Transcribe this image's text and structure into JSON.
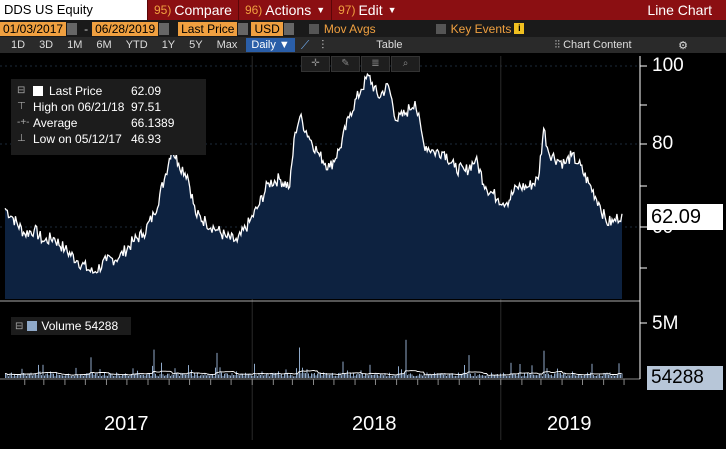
{
  "toolbar": {
    "ticker": "DDS US Equity",
    "compare_num": "95)",
    "compare": "Compare",
    "actions_num": "96)",
    "actions": "Actions",
    "edit_num": "97)",
    "edit": "Edit",
    "chart_title": "Line Chart"
  },
  "controls": {
    "start_date": "01/03/2017",
    "end_date": "06/28/2019",
    "field": "Last Price",
    "currency": "USD",
    "mov_avgs": "Mov Avgs",
    "key_events": "Key Events"
  },
  "periods": [
    "1D",
    "3D",
    "1M",
    "6M",
    "YTD",
    "1Y",
    "5Y",
    "Max"
  ],
  "frequency": "Daily",
  "table_label": "Table",
  "chart_content_label": "Chart Content",
  "legend": {
    "last_price_label": "Last Price",
    "last_price": "62.09",
    "high_label": "High on 06/21/18",
    "high": "97.51",
    "average_label": "Average",
    "average": "66.1389",
    "low_label": "Low on 05/12/17",
    "low": "46.93"
  },
  "volume_legend": {
    "label": "Volume",
    "value": "54288"
  },
  "price_label": "62.09",
  "volume_label": "54288",
  "chart_data": {
    "type": "area",
    "x_labels": [
      "2017",
      "2018",
      "2019"
    ],
    "y_ticks": [
      "100",
      "80",
      "60"
    ],
    "volume_ticks": [
      "5M"
    ],
    "colors": {
      "area": "#0d2240",
      "line": "#ffffff",
      "volume": "#8fa9c9"
    },
    "price": [
      [
        "2017-01-03",
        63.5
      ],
      [
        "2017-01-15",
        61
      ],
      [
        "2017-02-01",
        57
      ],
      [
        "2017-02-15",
        58
      ],
      [
        "2017-03-01",
        55
      ],
      [
        "2017-03-15",
        56
      ],
      [
        "2017-04-01",
        53
      ],
      [
        "2017-04-20",
        50
      ],
      [
        "2017-05-12",
        46.93
      ],
      [
        "2017-06-01",
        50
      ],
      [
        "2017-06-20",
        51
      ],
      [
        "2017-07-10",
        55
      ],
      [
        "2017-07-25",
        57
      ],
      [
        "2017-08-10",
        62
      ],
      [
        "2017-08-25",
        71
      ],
      [
        "2017-09-05",
        79
      ],
      [
        "2017-09-15",
        75
      ],
      [
        "2017-09-28",
        72
      ],
      [
        "2017-10-10",
        62
      ],
      [
        "2017-10-25",
        60
      ],
      [
        "2017-11-10",
        58
      ],
      [
        "2017-11-25",
        56
      ],
      [
        "2017-12-10",
        55
      ],
      [
        "2017-12-28",
        60
      ],
      [
        "2018-01-10",
        64
      ],
      [
        "2018-01-25",
        70
      ],
      [
        "2018-02-10",
        71
      ],
      [
        "2018-02-25",
        69
      ],
      [
        "2018-03-05",
        83
      ],
      [
        "2018-03-12",
        87
      ],
      [
        "2018-03-25",
        82
      ],
      [
        "2018-04-10",
        77
      ],
      [
        "2018-04-25",
        74
      ],
      [
        "2018-05-10",
        79
      ],
      [
        "2018-05-25",
        88
      ],
      [
        "2018-06-10",
        94
      ],
      [
        "2018-06-21",
        97.51
      ],
      [
        "2018-07-05",
        92
      ],
      [
        "2018-07-20",
        95
      ],
      [
        "2018-08-01",
        86
      ],
      [
        "2018-08-15",
        88
      ],
      [
        "2018-08-28",
        91
      ],
      [
        "2018-09-10",
        80
      ],
      [
        "2018-09-25",
        78
      ],
      [
        "2018-10-10",
        78
      ],
      [
        "2018-10-25",
        74
      ],
      [
        "2018-11-10",
        73
      ],
      [
        "2018-11-25",
        76
      ],
      [
        "2018-12-10",
        69
      ],
      [
        "2018-12-28",
        66
      ],
      [
        "2019-01-10",
        65
      ],
      [
        "2019-01-25",
        69
      ],
      [
        "2019-02-10",
        69
      ],
      [
        "2019-02-25",
        71
      ],
      [
        "2019-03-05",
        84
      ],
      [
        "2019-03-12",
        78
      ],
      [
        "2019-03-25",
        76
      ],
      [
        "2019-04-05",
        75
      ],
      [
        "2019-04-15",
        77
      ],
      [
        "2019-04-25",
        75
      ],
      [
        "2019-05-10",
        70
      ],
      [
        "2019-05-25",
        65
      ],
      [
        "2019-06-05",
        60
      ],
      [
        "2019-06-15",
        60
      ],
      [
        "2019-06-28",
        62.09
      ]
    ],
    "volume": [
      [
        "2017-01-10",
        0.4
      ],
      [
        "2017-02-05",
        0.8
      ],
      [
        "2017-02-20",
        1.2
      ],
      [
        "2017-03-10",
        0.6
      ],
      [
        "2017-05-10",
        1.9
      ],
      [
        "2017-06-15",
        0.5
      ],
      [
        "2017-08-10",
        2.6
      ],
      [
        "2017-08-20",
        1.4
      ],
      [
        "2017-09-10",
        0.9
      ],
      [
        "2017-11-10",
        2.3
      ],
      [
        "2017-12-15",
        0.4
      ],
      [
        "2018-01-15",
        0.6
      ],
      [
        "2018-03-10",
        2.8
      ],
      [
        "2018-04-15",
        0.5
      ],
      [
        "2018-05-15",
        1.5
      ],
      [
        "2018-06-10",
        0.7
      ],
      [
        "2018-08-15",
        3.5
      ],
      [
        "2018-09-15",
        0.5
      ],
      [
        "2018-11-15",
        2.1
      ],
      [
        "2018-12-15",
        0.6
      ],
      [
        "2019-01-15",
        0.5
      ],
      [
        "2019-03-05",
        2.5
      ],
      [
        "2019-04-15",
        0.6
      ],
      [
        "2019-05-15",
        1.3
      ],
      [
        "2019-06-10",
        0.5
      ]
    ],
    "volume_max": 5.5
  }
}
